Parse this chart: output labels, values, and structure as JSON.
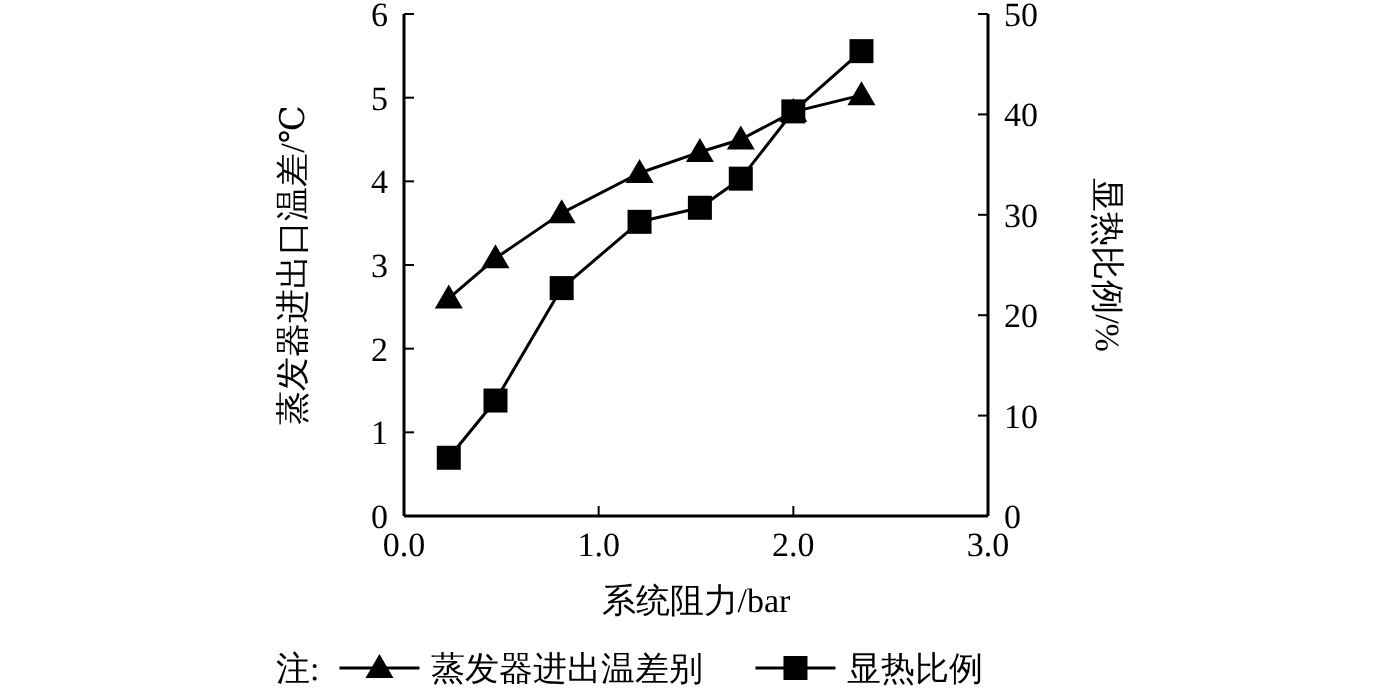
{
  "chart_data": {
    "type": "line",
    "xlabel": "系统阻力/bar",
    "ylabel": "蒸发器进出口温差/℃",
    "y2label": "显热比例/%",
    "xlim": [
      0,
      3
    ],
    "xticks": [
      {
        "value": 0,
        "label": "0.0"
      },
      {
        "value": 1,
        "label": "1.0"
      },
      {
        "value": 2,
        "label": "2.0"
      },
      {
        "value": 3,
        "label": "3.0"
      }
    ],
    "ylim": [
      0,
      6
    ],
    "yticks": [
      0,
      1,
      2,
      3,
      4,
      5,
      6
    ],
    "y2lim": [
      0,
      50
    ],
    "y2ticks": [
      0,
      10,
      20,
      30,
      40,
      50
    ],
    "series": [
      {
        "name": "蒸发器进出温差别",
        "color": "#000000",
        "marker": "triangle",
        "x": [
          0.23,
          0.47,
          0.81,
          1.21,
          1.52,
          1.73,
          2.0,
          2.35
        ],
        "values": [
          2.6,
          3.08,
          3.62,
          4.1,
          4.35,
          4.5,
          4.83,
          5.03
        ]
      },
      {
        "name": "显热比例",
        "color": "#000000",
        "marker": "square",
        "axis": "y2",
        "x": [
          0.23,
          0.47,
          0.81,
          1.21,
          1.52,
          1.73,
          2.0,
          2.35
        ],
        "values": [
          5.8,
          11.5,
          22.7,
          29.3,
          30.7,
          33.6,
          40.3,
          46.3
        ]
      }
    ],
    "annotations": [
      "注:"
    ],
    "legend": "bottom",
    "grid": false,
    "line_style": "solid"
  }
}
